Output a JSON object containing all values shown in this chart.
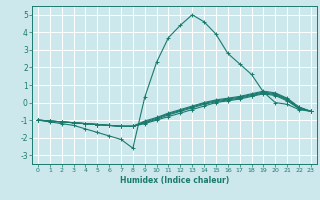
{
  "xlabel": "Humidex (Indice chaleur)",
  "ylabel": "",
  "xlim": [
    -0.5,
    23.5
  ],
  "ylim": [
    -3.5,
    5.5
  ],
  "yticks": [
    -3,
    -2,
    -1,
    0,
    1,
    2,
    3,
    4,
    5
  ],
  "xticks": [
    0,
    1,
    2,
    3,
    4,
    5,
    6,
    7,
    8,
    9,
    10,
    11,
    12,
    13,
    14,
    15,
    16,
    17,
    18,
    19,
    20,
    21,
    22,
    23
  ],
  "bg_color": "#cce8ec",
  "line_color": "#1a7a6e",
  "grid_color": "#ffffff",
  "lines": [
    {
      "x": [
        0,
        1,
        2,
        3,
        4,
        5,
        6,
        7,
        8,
        9,
        10,
        11,
        12,
        13,
        14,
        15,
        16,
        17,
        18,
        19,
        20,
        21,
        22,
        23
      ],
      "y": [
        -1.0,
        -1.1,
        -1.2,
        -1.3,
        -1.5,
        -1.7,
        -1.9,
        -2.1,
        -2.6,
        0.3,
        2.3,
        3.7,
        4.4,
        5.0,
        4.6,
        3.9,
        2.8,
        2.2,
        1.6,
        0.6,
        0.0,
        -0.1,
        -0.4,
        -0.5
      ]
    },
    {
      "x": [
        0,
        1,
        2,
        3,
        4,
        5,
        6,
        7,
        8,
        9,
        10,
        11,
        12,
        13,
        14,
        15,
        16,
        17,
        18,
        19,
        20,
        21,
        22,
        23
      ],
      "y": [
        -1.0,
        -1.05,
        -1.1,
        -1.15,
        -1.2,
        -1.25,
        -1.3,
        -1.35,
        -1.35,
        -1.2,
        -1.0,
        -0.8,
        -0.6,
        -0.4,
        -0.2,
        0.0,
        0.1,
        0.2,
        0.35,
        0.5,
        0.4,
        0.1,
        -0.35,
        -0.5
      ]
    },
    {
      "x": [
        0,
        1,
        2,
        3,
        4,
        5,
        6,
        7,
        8,
        9,
        10,
        11,
        12,
        13,
        14,
        15,
        16,
        17,
        18,
        19,
        20,
        21,
        22,
        23
      ],
      "y": [
        -1.0,
        -1.05,
        -1.1,
        -1.15,
        -1.2,
        -1.25,
        -1.3,
        -1.35,
        -1.35,
        -1.15,
        -0.95,
        -0.7,
        -0.5,
        -0.3,
        -0.1,
        0.05,
        0.15,
        0.25,
        0.4,
        0.55,
        0.45,
        0.15,
        -0.3,
        -0.5
      ]
    },
    {
      "x": [
        0,
        1,
        2,
        3,
        4,
        5,
        6,
        7,
        8,
        9,
        10,
        11,
        12,
        13,
        14,
        15,
        16,
        17,
        18,
        19,
        20,
        21,
        22,
        23
      ],
      "y": [
        -1.0,
        -1.05,
        -1.1,
        -1.15,
        -1.2,
        -1.25,
        -1.3,
        -1.35,
        -1.35,
        -1.1,
        -0.9,
        -0.65,
        -0.45,
        -0.25,
        -0.05,
        0.1,
        0.2,
        0.3,
        0.45,
        0.6,
        0.5,
        0.2,
        -0.28,
        -0.5
      ]
    },
    {
      "x": [
        0,
        1,
        2,
        3,
        4,
        5,
        6,
        7,
        8,
        9,
        10,
        11,
        12,
        13,
        14,
        15,
        16,
        17,
        18,
        19,
        20,
        21,
        22,
        23
      ],
      "y": [
        -1.0,
        -1.05,
        -1.1,
        -1.15,
        -1.2,
        -1.25,
        -1.3,
        -1.35,
        -1.35,
        -1.05,
        -0.85,
        -0.6,
        -0.4,
        -0.2,
        0.0,
        0.15,
        0.25,
        0.35,
        0.5,
        0.65,
        0.55,
        0.25,
        -0.25,
        -0.5
      ]
    }
  ]
}
